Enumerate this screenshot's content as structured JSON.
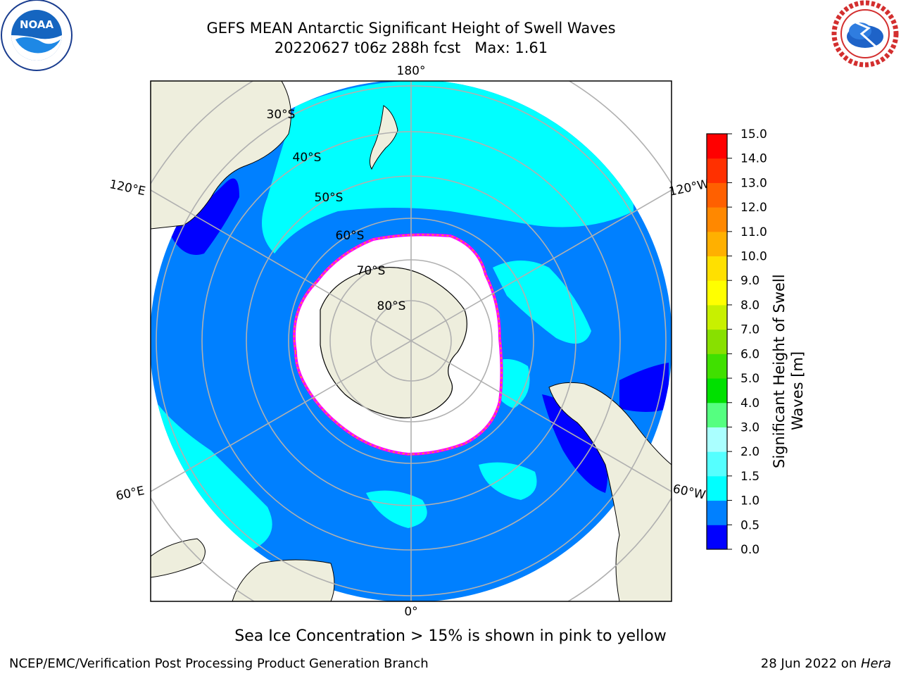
{
  "title": {
    "line1": "GEFS MEAN Antarctic Significant Height of Swell Waves",
    "line2": "20220627 t06z 288h fcst   Max: 1.61"
  },
  "logos": {
    "noara_text": "NOAA",
    "nws_text": "NATIONAL WEATHER SERVICE"
  },
  "map": {
    "lon_labels": {
      "top": "180°",
      "bottom": "0°",
      "left_upper": "120°E",
      "left_lower": "60°E",
      "right_upper": "120°W",
      "right_lower": "60°W"
    },
    "lat_labels": [
      "30°S",
      "40°S",
      "50°S",
      "60°S",
      "70°S",
      "80°S"
    ]
  },
  "colorbar": {
    "label_line1": "Significant Height of Swell",
    "label_line2": "Waves [m]",
    "ticks": [
      "0.0",
      "0.5",
      "1.0",
      "1.5",
      "2.0",
      "3.0",
      "4.0",
      "5.0",
      "6.0",
      "7.0",
      "8.0",
      "9.0",
      "10.0",
      "11.0",
      "12.0",
      "13.0",
      "14.0",
      "15.0"
    ],
    "colors": [
      "#0000ff",
      "#0080ff",
      "#00ffff",
      "#55ffff",
      "#aaffff",
      "#55ff80",
      "#00e000",
      "#40e000",
      "#88e000",
      "#c8f000",
      "#ffff00",
      "#ffe000",
      "#ffb000",
      "#ff8800",
      "#ff6000",
      "#ff3000",
      "#ff0000"
    ]
  },
  "note": "Sea Ice Concentration > 15% is shown in pink to yellow",
  "footer": {
    "left": "NCEP/EMC/Verification Post Processing Product Generation Branch",
    "right_date": "28 Jun 2022 on ",
    "right_machine": "Hera"
  }
}
